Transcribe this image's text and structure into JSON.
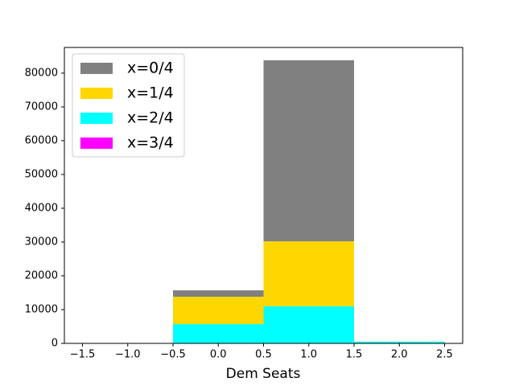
{
  "chart_data": {
    "type": "stacked_histogram",
    "xlabel": "Dem Seats",
    "bins": [
      -1.5,
      -0.5,
      0.5,
      1.5,
      2.5
    ],
    "series": [
      {
        "name": "x=0/4",
        "color": "#808080",
        "values": [
          0,
          1900,
          53600,
          0
        ]
      },
      {
        "name": "x=1/4",
        "color": "#ffd700",
        "values": [
          0,
          8100,
          19200,
          0
        ]
      },
      {
        "name": "x=2/4",
        "color": "#00ffff",
        "values": [
          0,
          5700,
          11000,
          500
        ]
      },
      {
        "name": "x=3/4",
        "color": "#ff00ff",
        "values": [
          0,
          0,
          0,
          0
        ]
      }
    ],
    "xlim": [
      -1.7,
      2.7
    ],
    "ylim": [
      0,
      87600
    ],
    "xticks": [
      {
        "value": -1.5,
        "label": "−1.5"
      },
      {
        "value": -1.0,
        "label": "−1.0"
      },
      {
        "value": -0.5,
        "label": "−0.5"
      },
      {
        "value": 0,
        "label": "0.0"
      },
      0.5,
      {
        "value": 1.0,
        "label": "1.0"
      },
      1.5,
      {
        "value": 2.0,
        "label": "2.0"
      },
      2.5
    ],
    "yticks": [
      0,
      10000,
      20000,
      30000,
      40000,
      50000,
      60000,
      70000,
      80000
    ],
    "legend": "upper left"
  }
}
